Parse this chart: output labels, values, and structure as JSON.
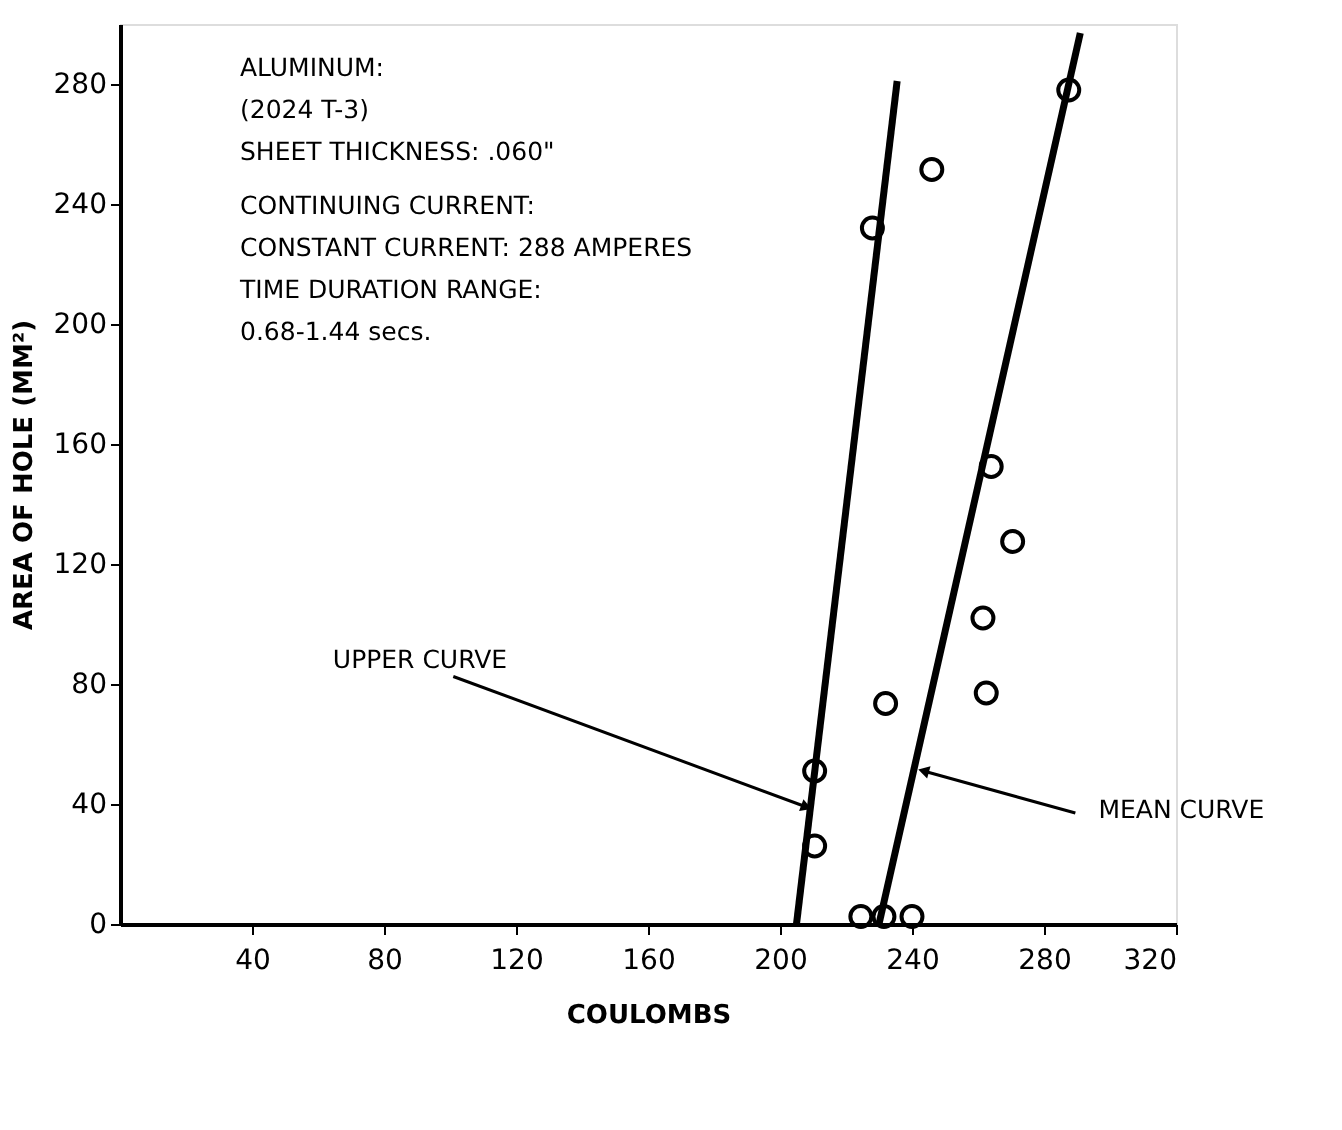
{
  "chart_data": {
    "type": "scatter",
    "xlabel": "COULOMBS",
    "ylabel": "AREA OF HOLE (MM²)",
    "xlim": [
      0,
      320
    ],
    "ylim": [
      0,
      300
    ],
    "xticks": [
      40,
      80,
      120,
      160,
      200,
      240,
      280,
      320
    ],
    "yticks": [
      0,
      40,
      80,
      120,
      160,
      200,
      240,
      280
    ],
    "grid": false,
    "series": [
      {
        "marker": "circle",
        "color": "#000000",
        "x": [
          287.5,
          246,
          228,
          264,
          270.5,
          261.5,
          262.5,
          232,
          210.5,
          210.5,
          224.5,
          231.5,
          240
        ],
        "values": [
          278,
          251.5,
          232,
          152.5,
          127.5,
          102,
          77,
          73.5,
          51,
          26,
          2.5,
          2.5,
          2.5
        ]
      },
      {
        "type": "line",
        "color": "#000000",
        "line_style": "solid",
        "marker": "none",
        "x": [
          205,
          235.5
        ],
        "values": [
          0,
          281
        ]
      },
      {
        "type": "line",
        "color": "#000000",
        "line_style": "solid",
        "marker": "none",
        "x": [
          230,
          291
        ],
        "values": [
          0,
          297
        ]
      }
    ],
    "annotations": [
      "ALUMINUM:",
      "(2024 T-3)",
      "SHEET THICKNESS: .060\"",
      "CONTINUING CURRENT:",
      "CONSTANT CURRENT: 288 AMPERES",
      "TIME DURATION RANGE:",
      "0.68-1.44 secs.",
      {
        "text": "UPPER CURVE",
        "x": 208,
        "y": 39
      },
      {
        "text": "MEAN CURVE",
        "x": 243.5,
        "y": 51
      }
    ]
  }
}
